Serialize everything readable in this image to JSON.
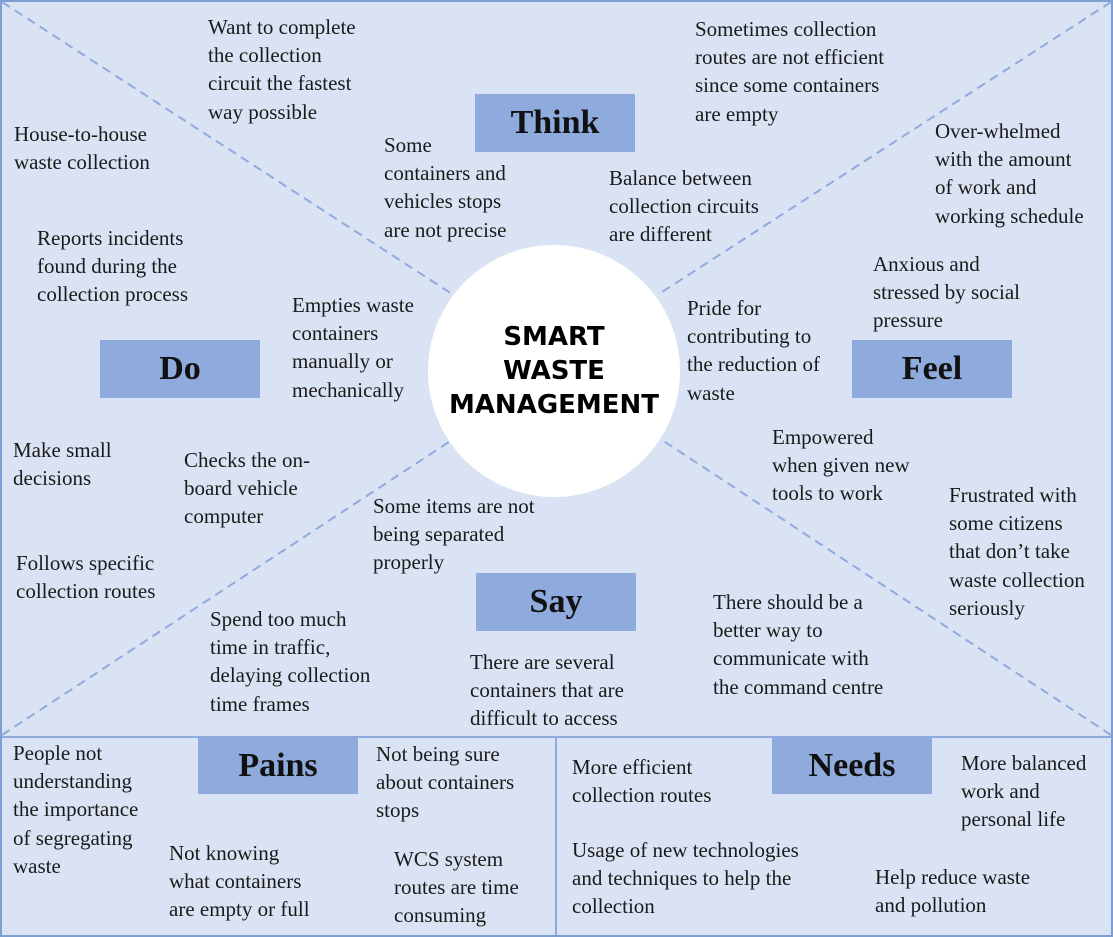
{
  "center": {
    "title": "SMART\nWASTE\nMANAGEMENT"
  },
  "labels": {
    "think": "Think",
    "do": "Do",
    "feel": "Feel",
    "say": "Say",
    "pains": "Pains",
    "needs": "Needs"
  },
  "think": {
    "complete_circuit": "Want to complete\nthe collection\ncircuit the fastest\nway possible",
    "routes_not_efficient": "Sometimes collection\nroutes are not efficient\nsince some containers\nare empty",
    "stops_not_precise": "Some\ncontainers and\nvehicles stops\nare not precise",
    "balance_circuits": "Balance between\ncollection circuits\nare different"
  },
  "do": {
    "house_to_house": "House-to-house\nwaste collection",
    "reports_incidents": "Reports incidents\nfound during the\ncollection process",
    "empties_containers": "Empties waste\ncontainers\nmanually or\nmechanically",
    "small_decisions": "Make small\ndecisions",
    "checks_computer": "Checks the on-\nboard vehicle\ncomputer",
    "follows_routes": "Follows specific\ncollection routes"
  },
  "feel": {
    "overwhelmed": "Over-whelmed\nwith the amount\nof work and\nworking schedule",
    "anxious": "Anxious and\nstressed by social\npressure",
    "pride": "Pride for\ncontributing to\nthe reduction of\nwaste",
    "empowered": "Empowered\nwhen given new\ntools to work",
    "frustrated": "Frustrated with\nsome citizens\nthat don’t take\nwaste collection\nseriously"
  },
  "say": {
    "not_separated": "Some items are not\nbeing separated\nproperly",
    "traffic": "Spend too much\ntime in traffic,\ndelaying collection\ntime frames",
    "difficult_access": "There are several\ncontainers that are\ndifficult to access",
    "better_way": "There should be a\nbetter way to\ncommunicate with\nthe command centre"
  },
  "pains": {
    "segregating": "People not\nunderstanding\nthe importance\nof segregating\nwaste",
    "not_sure_stops": "Not being sure\nabout containers\nstops",
    "empty_or_full": "Not knowing\nwhat containers\nare empty or full",
    "wcs_routes": "WCS system\nroutes are time\nconsuming"
  },
  "needs": {
    "efficient_routes": "More efficient\ncollection routes",
    "balanced_life": "More balanced\nwork and\npersonal life",
    "new_technologies": "Usage of new technologies\nand techniques to help the\ncollection",
    "reduce_waste": "Help reduce waste\nand pollution"
  },
  "colors": {
    "background": "#dae3f3",
    "label_fill": "#8faadc",
    "lines": "#8faadc",
    "border": "#7f9fd3"
  }
}
